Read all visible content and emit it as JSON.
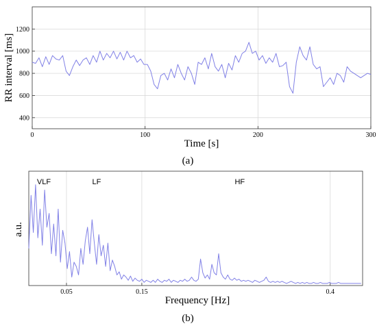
{
  "chart_data": [
    {
      "type": "line",
      "panel_label": "(a)",
      "xlabel": "Time [s]",
      "ylabel": "RR interval [ms]",
      "xlim": [
        0,
        300
      ],
      "ylim": [
        300,
        1400
      ],
      "xticks": [
        0,
        100,
        200,
        300
      ],
      "yticks": [
        400,
        600,
        800,
        1000,
        1200
      ],
      "grid": true,
      "series": [
        {
          "color": "#8080e6",
          "x": [
            0,
            3,
            6,
            9,
            12,
            15,
            18,
            21,
            24,
            27,
            30,
            33,
            36,
            39,
            42,
            45,
            48,
            51,
            54,
            57,
            60,
            63,
            66,
            69,
            72,
            75,
            78,
            81,
            84,
            87,
            90,
            93,
            96,
            99,
            102,
            105,
            108,
            111,
            114,
            117,
            120,
            123,
            126,
            129,
            132,
            135,
            138,
            141,
            144,
            147,
            150,
            153,
            156,
            159,
            162,
            165,
            168,
            171,
            174,
            177,
            180,
            183,
            186,
            189,
            192,
            195,
            198,
            201,
            204,
            207,
            210,
            213,
            216,
            219,
            222,
            225,
            228,
            231,
            234,
            237,
            240,
            243,
            246,
            249,
            252,
            255,
            258,
            261,
            264,
            267,
            270,
            273,
            276,
            279,
            282,
            285,
            288,
            291,
            294,
            297,
            300
          ],
          "values": [
            900,
            890,
            940,
            860,
            950,
            880,
            960,
            930,
            920,
            960,
            820,
            780,
            860,
            920,
            870,
            920,
            940,
            880,
            960,
            900,
            1000,
            920,
            980,
            940,
            1000,
            930,
            990,
            920,
            1000,
            940,
            960,
            900,
            930,
            880,
            880,
            820,
            700,
            660,
            780,
            800,
            740,
            840,
            760,
            880,
            800,
            740,
            860,
            800,
            700,
            900,
            880,
            940,
            840,
            980,
            860,
            820,
            880,
            760,
            890,
            830,
            960,
            900,
            980,
            1000,
            1080,
            980,
            1000,
            920,
            960,
            890,
            940,
            900,
            980,
            860,
            870,
            900,
            680,
            620,
            900,
            1040,
            960,
            920,
            1040,
            880,
            840,
            860,
            680,
            720,
            760,
            700,
            800,
            780,
            720,
            860,
            820,
            800,
            780,
            760,
            780,
            800,
            790
          ]
        }
      ]
    },
    {
      "type": "line",
      "panel_label": "(b)",
      "xlabel": "Frequency [Hz]",
      "ylabel": "a.u.",
      "xlim": [
        0,
        0.443
      ],
      "ylim": [
        0,
        1
      ],
      "xticks": [
        0.05,
        0.15,
        0.4
      ],
      "xtick_labels": [
        "0.05",
        "0.15",
        "0.4"
      ],
      "band_dividers": [
        0.05,
        0.15,
        0.4
      ],
      "band_labels": [
        {
          "text": "VLF",
          "x": 0.02
        },
        {
          "text": "LF",
          "x": 0.09
        },
        {
          "text": "HF",
          "x": 0.28
        }
      ],
      "grid": false,
      "series": [
        {
          "color": "#8080e6",
          "x": [
            0,
            0.003,
            0.006,
            0.009,
            0.012,
            0.015,
            0.018,
            0.021,
            0.024,
            0.027,
            0.03,
            0.033,
            0.036,
            0.039,
            0.042,
            0.045,
            0.048,
            0.051,
            0.054,
            0.057,
            0.06,
            0.063,
            0.066,
            0.069,
            0.072,
            0.075,
            0.078,
            0.081,
            0.084,
            0.087,
            0.09,
            0.093,
            0.096,
            0.099,
            0.102,
            0.105,
            0.108,
            0.111,
            0.114,
            0.117,
            0.12,
            0.123,
            0.126,
            0.129,
            0.132,
            0.135,
            0.138,
            0.141,
            0.144,
            0.147,
            0.15,
            0.153,
            0.156,
            0.159,
            0.162,
            0.165,
            0.168,
            0.171,
            0.174,
            0.177,
            0.18,
            0.183,
            0.186,
            0.189,
            0.192,
            0.195,
            0.198,
            0.201,
            0.204,
            0.207,
            0.21,
            0.213,
            0.216,
            0.219,
            0.222,
            0.225,
            0.228,
            0.231,
            0.234,
            0.237,
            0.24,
            0.243,
            0.246,
            0.249,
            0.252,
            0.255,
            0.258,
            0.261,
            0.264,
            0.267,
            0.27,
            0.273,
            0.276,
            0.279,
            0.282,
            0.285,
            0.288,
            0.291,
            0.294,
            0.297,
            0.3,
            0.303,
            0.306,
            0.309,
            0.312,
            0.315,
            0.318,
            0.321,
            0.324,
            0.327,
            0.33,
            0.333,
            0.336,
            0.339,
            0.342,
            0.345,
            0.348,
            0.351,
            0.354,
            0.357,
            0.36,
            0.363,
            0.366,
            0.369,
            0.372,
            0.375,
            0.378,
            0.381,
            0.384,
            0.387,
            0.39,
            0.393,
            0.396,
            0.399,
            0.402,
            0.405,
            0.408,
            0.411,
            0.414,
            0.417,
            0.42,
            0.423,
            0.426,
            0.429,
            0.432,
            0.435,
            0.438,
            0.441
          ],
          "values": [
            0.35,
            0.85,
            0.5,
            0.95,
            0.45,
            0.72,
            0.38,
            0.9,
            0.55,
            0.68,
            0.3,
            0.58,
            0.28,
            0.72,
            0.22,
            0.52,
            0.4,
            0.16,
            0.32,
            0.08,
            0.22,
            0.18,
            0.1,
            0.35,
            0.2,
            0.42,
            0.55,
            0.3,
            0.62,
            0.4,
            0.2,
            0.48,
            0.28,
            0.38,
            0.18,
            0.4,
            0.14,
            0.24,
            0.18,
            0.1,
            0.13,
            0.06,
            0.1,
            0.08,
            0.05,
            0.09,
            0.04,
            0.07,
            0.05,
            0.04,
            0.06,
            0.03,
            0.05,
            0.04,
            0.03,
            0.05,
            0.03,
            0.06,
            0.04,
            0.03,
            0.05,
            0.04,
            0.06,
            0.03,
            0.05,
            0.04,
            0.03,
            0.05,
            0.04,
            0.06,
            0.04,
            0.05,
            0.08,
            0.05,
            0.04,
            0.06,
            0.25,
            0.12,
            0.07,
            0.1,
            0.06,
            0.2,
            0.12,
            0.1,
            0.3,
            0.12,
            0.08,
            0.06,
            0.1,
            0.06,
            0.05,
            0.07,
            0.05,
            0.06,
            0.04,
            0.05,
            0.04,
            0.05,
            0.04,
            0.03,
            0.05,
            0.04,
            0.03,
            0.04,
            0.05,
            0.08,
            0.04,
            0.03,
            0.04,
            0.03,
            0.04,
            0.03,
            0.04,
            0.03,
            0.02,
            0.03,
            0.04,
            0.03,
            0.02,
            0.03,
            0.02,
            0.03,
            0.02,
            0.03,
            0.02,
            0.02,
            0.03,
            0.02,
            0.02,
            0.03,
            0.02,
            0.02,
            0.02,
            0.03,
            0.02,
            0.02,
            0.02,
            0.03,
            0.02,
            0.02,
            0.02,
            0.02,
            0.02,
            0.02,
            0.02,
            0.02,
            0.02,
            0.02
          ]
        }
      ]
    }
  ]
}
